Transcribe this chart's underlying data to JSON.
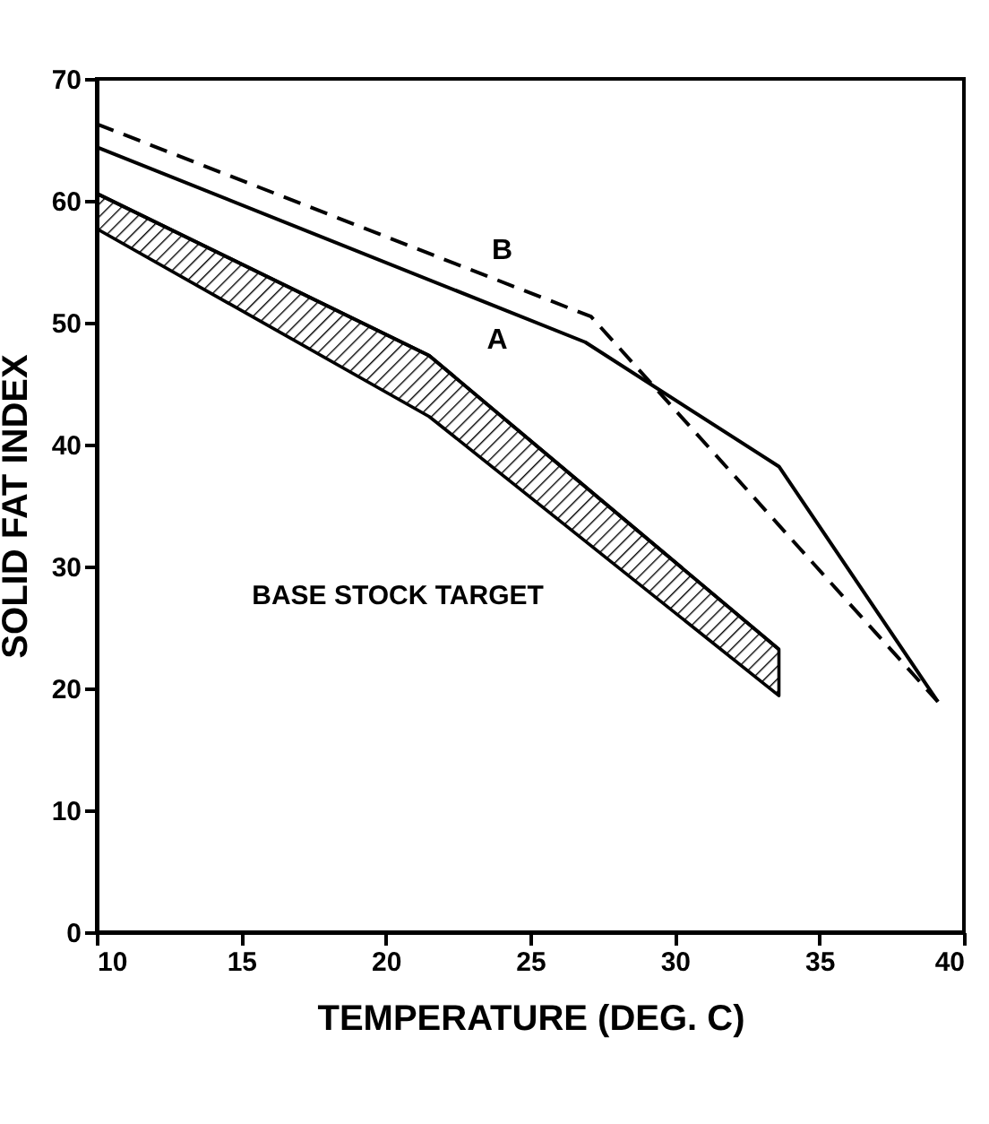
{
  "chart_data": {
    "type": "line",
    "xlabel": "TEMPERATURE  (DEG. C)",
    "ylabel": "SOLID FAT INDEX",
    "xlim": [
      10,
      40
    ],
    "ylim": [
      0,
      70
    ],
    "xticks": [
      10,
      15,
      20,
      25,
      30,
      35,
      40
    ],
    "yticks": [
      0,
      10,
      20,
      30,
      40,
      50,
      60,
      70
    ],
    "annotations": [
      "BASE STOCK TARGET"
    ],
    "series": [
      {
        "name": "A",
        "color": "#000000",
        "x": [
          10,
          26.9,
          33.6,
          39.1
        ],
        "values": [
          64.4,
          48.4,
          38.2,
          18.9
        ]
      },
      {
        "name": "B",
        "color": "#000000",
        "x": [
          10,
          27.1,
          39.1
        ],
        "values": [
          66.3,
          50.5,
          18.9
        ],
        "line_style": "dashed"
      },
      {
        "type": "line",
        "color": "#000000",
        "x": [
          10,
          21.5,
          33.6
        ],
        "values": [
          60.6,
          47.3,
          23.2
        ],
        "lower": [
          57.7,
          42.3,
          19.4
        ],
        "upper": [
          60.6,
          47.3,
          23.2
        ]
      }
    ]
  }
}
